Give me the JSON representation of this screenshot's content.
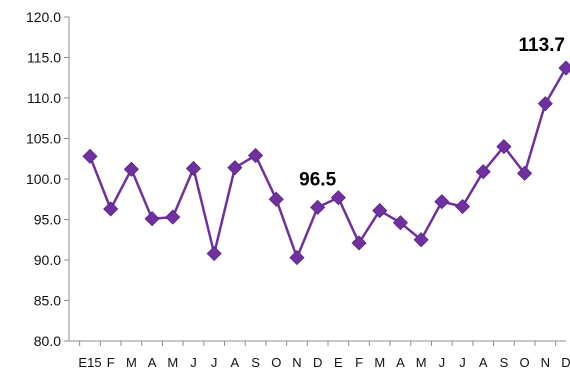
{
  "chart_data": {
    "type": "line",
    "title": "",
    "xlabel": "",
    "ylabel": "",
    "categories": [
      "E15",
      "F",
      "M",
      "A",
      "M",
      "J",
      "J",
      "A",
      "S",
      "O",
      "N",
      "D",
      "E",
      "F",
      "M",
      "A",
      "M",
      "J",
      "J",
      "A",
      "S",
      "O",
      "N",
      "D"
    ],
    "series": [
      {
        "values": [
          102.8,
          96.3,
          101.2,
          95.1,
          95.3,
          101.3,
          90.8,
          101.4,
          102.9,
          97.5,
          90.3,
          96.5,
          97.7,
          92.1,
          96.1,
          94.6,
          92.5,
          97.2,
          96.6,
          100.9,
          104.0,
          100.7,
          109.3,
          113.7
        ],
        "color": "#7030A0"
      }
    ],
    "ylim": [
      80.0,
      120.0
    ],
    "yticks": [
      "80.0",
      "85.0",
      "90.0",
      "95.0",
      "100.0",
      "105.0",
      "110.0",
      "115.0",
      "120.0"
    ],
    "data_labels": [
      {
        "index": 11,
        "text": "96.5"
      },
      {
        "index": 23,
        "text": "113.7"
      }
    ],
    "grid": false,
    "legend": "none",
    "marker": "diamond"
  }
}
